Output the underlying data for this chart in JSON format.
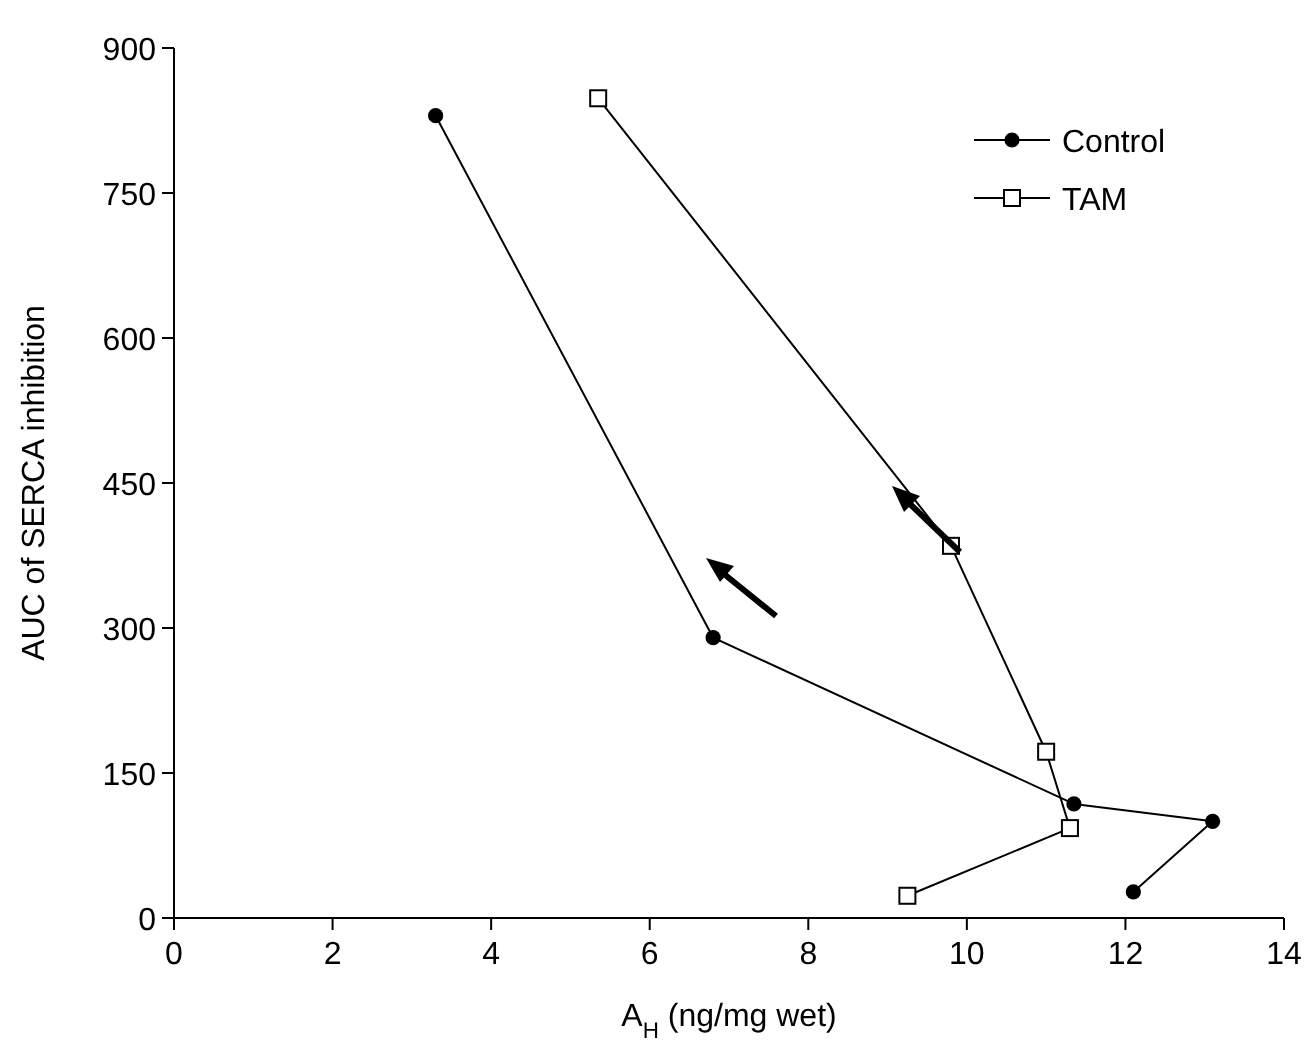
{
  "chart_data": {
    "type": "line",
    "xlabel": "A$_{H}$ (ng/mg wet)",
    "ylabel": "AUC of SERCA inhibition",
    "xlim": [
      0,
      14
    ],
    "xticks": [
      0,
      2,
      4,
      6,
      8,
      10,
      12,
      14
    ],
    "ylim": [
      0,
      900
    ],
    "yticks": [
      0,
      150,
      300,
      450,
      600,
      750,
      900
    ],
    "grid": false,
    "legend": "top right",
    "line_style": "solid",
    "series": [
      {
        "name": "Control",
        "color": "#000000",
        "marker": "circle",
        "x": [
          3.3,
          6.8,
          11.35,
          13.1,
          12.1
        ],
        "values": [
          830,
          290,
          118,
          100,
          27
        ]
      },
      {
        "name": "TAM",
        "color": "#000000",
        "marker": "square",
        "x": [
          5.35,
          9.8,
          11.0,
          11.3,
          9.25
        ],
        "values": [
          848,
          385,
          172,
          93,
          23
        ]
      }
    ]
  }
}
